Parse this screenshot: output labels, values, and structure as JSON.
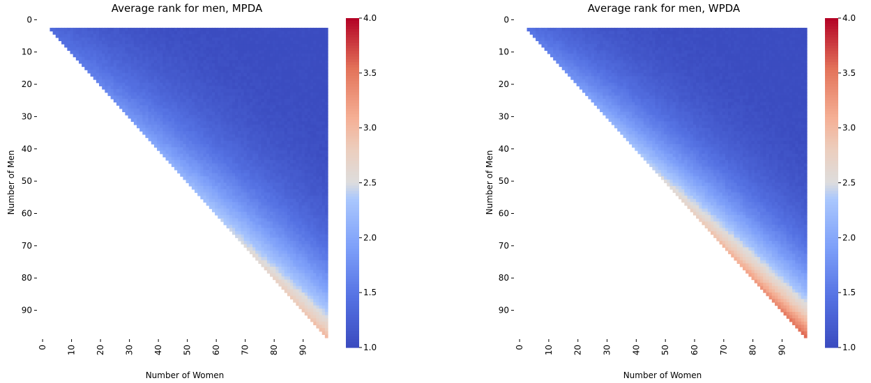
{
  "chart_data": [
    {
      "type": "heatmap",
      "title": "Average rank for men, MPDA",
      "xlabel": "Number of Women",
      "ylabel": "Number of Men",
      "x_range": [
        0,
        98
      ],
      "y_range": [
        0,
        98
      ],
      "x_tick_labels": [
        "0",
        "10",
        "20",
        "30",
        "40",
        "50",
        "60",
        "70",
        "80",
        "90"
      ],
      "y_tick_labels": [
        "0",
        "10",
        "20",
        "30",
        "40",
        "50",
        "60",
        "70",
        "80",
        "90"
      ],
      "colorbar": {
        "min": 1.0,
        "max": 4.0,
        "tick_labels": [
          "1.0",
          "1.5",
          "2.0",
          "2.5",
          "3.0",
          "3.5",
          "4.0"
        ],
        "colormap": "coolwarm"
      },
      "description_of_values": "cells shown only where women >= men; value rises toward ~3.0 near the diagonal and falls to ~1.0 far from it",
      "diagonal_peak_value": 3.0,
      "falloff_exponent": 0.55
    },
    {
      "type": "heatmap",
      "title": "Average rank for men, WPDA",
      "xlabel": "Number of Women",
      "ylabel": "Number of Men",
      "x_range": [
        0,
        98
      ],
      "y_range": [
        0,
        98
      ],
      "x_tick_labels": [
        "0",
        "10",
        "20",
        "30",
        "40",
        "50",
        "60",
        "70",
        "80",
        "90"
      ],
      "y_tick_labels": [
        "0",
        "10",
        "20",
        "30",
        "40",
        "50",
        "60",
        "70",
        "80",
        "90"
      ],
      "colorbar": {
        "min": 1.0,
        "max": 4.0,
        "tick_labels": [
          "1.0",
          "1.5",
          "2.0",
          "2.5",
          "3.0",
          "3.5",
          "4.0"
        ],
        "colormap": "coolwarm"
      },
      "description_of_values": "cells shown only where women >= men; value rises toward ~3.6 near the diagonal and falls to ~1.0 far from it",
      "diagonal_peak_value": 3.6,
      "falloff_exponent": 0.45
    }
  ],
  "colors": {
    "coolwarm_low": "#3b4cc0",
    "coolwarm_mid": "#dddddd",
    "coolwarm_high": "#b40426"
  }
}
